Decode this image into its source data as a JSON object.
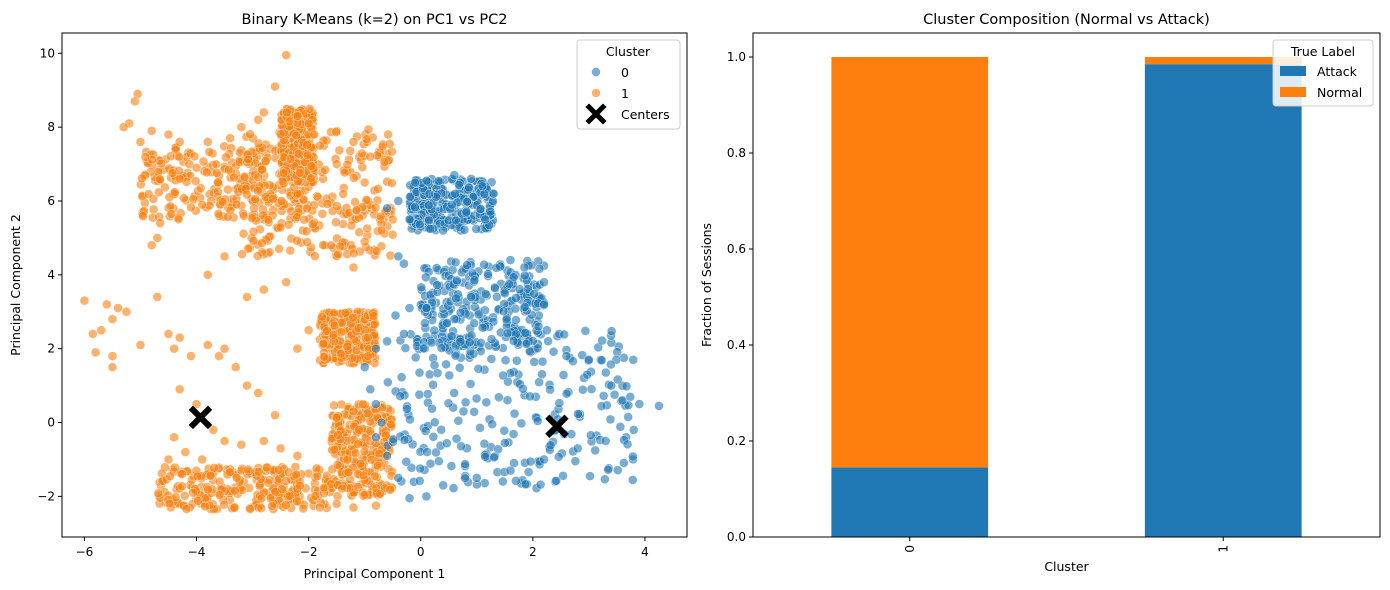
{
  "chart_data": [
    {
      "type": "scatter",
      "title": "Binary K-Means (k=2) on PC1 vs PC2",
      "xlabel": "Principal Component 1",
      "ylabel": "Principal Component 2",
      "xlim": [
        -6.4,
        4.75
      ],
      "ylim": [
        -3.1,
        10.55
      ],
      "xticks": [
        -6,
        -4,
        -2,
        0,
        2,
        4
      ],
      "yticks": [
        -2,
        0,
        2,
        4,
        6,
        8,
        10
      ],
      "xtick_labels": [
        "−6",
        "−4",
        "−2",
        "0",
        "2",
        "4"
      ],
      "ytick_labels": [
        "−2",
        "0",
        "2",
        "4",
        "6",
        "8",
        "10"
      ],
      "legend": {
        "title": "Cluster",
        "position": "top-right",
        "entries": [
          {
            "label": "0",
            "marker": "circle",
            "color": "#1f77b4"
          },
          {
            "label": "1",
            "marker": "circle",
            "color": "#ff7f0e"
          },
          {
            "label": "Centers",
            "marker": "X",
            "color": "#000000"
          }
        ]
      },
      "centers": [
        {
          "cluster": "1",
          "x": -3.93,
          "y": 0.14
        },
        {
          "cluster": "0",
          "x": 2.43,
          "y": -0.1
        }
      ],
      "series": [
        {
          "name": "0",
          "color": "#1f77b4",
          "regions": [
            {
              "x": [
                -0.6,
                3.8
              ],
              "y": [
                -1.8,
                2.5
              ]
            },
            {
              "x": [
                -0.2,
                1.3
              ],
              "y": [
                5.2,
                6.6
              ]
            },
            {
              "x": [
                0.0,
                2.2
              ],
              "y": [
                2.0,
                4.4
              ]
            }
          ],
          "points": [
            [
              4.25,
              0.45
            ],
            [
              3.9,
              0.5
            ],
            [
              3.7,
              0.15
            ],
            [
              3.6,
              0.6
            ],
            [
              3.8,
              -0.2
            ],
            [
              3.4,
              1.0
            ],
            [
              3.0,
              1.7
            ],
            [
              2.6,
              1.8
            ],
            [
              2.1,
              2.6
            ],
            [
              1.6,
              4.4
            ],
            [
              1.85,
              4.2
            ],
            [
              2.2,
              3.8
            ],
            [
              2.2,
              3.2
            ],
            [
              2.25,
              2.5
            ],
            [
              1.5,
              3.5
            ],
            [
              0.9,
              3.4
            ],
            [
              0.1,
              3.1
            ],
            [
              -0.2,
              3.1
            ],
            [
              -0.45,
              2.9
            ],
            [
              -0.3,
              2.4
            ],
            [
              -0.6,
              2.2
            ],
            [
              -0.8,
              2.0
            ],
            [
              -1.0,
              1.5
            ],
            [
              -0.9,
              0.9
            ],
            [
              -0.8,
              0.5
            ],
            [
              -0.7,
              0.0
            ],
            [
              -0.8,
              -0.4
            ],
            [
              -0.6,
              -0.9
            ],
            [
              -0.4,
              -1.5
            ],
            [
              -0.2,
              -2.05
            ],
            [
              0.1,
              -2.0
            ],
            [
              0.4,
              -1.7
            ],
            [
              1.0,
              -1.5
            ],
            [
              1.6,
              -1.3
            ],
            [
              2.2,
              -1.0
            ],
            [
              2.8,
              -0.7
            ],
            [
              3.3,
              -0.5
            ],
            [
              -0.4,
              4.5
            ],
            [
              -0.3,
              4.3
            ],
            [
              0.4,
              5.2
            ],
            [
              1.15,
              5.5
            ],
            [
              1.3,
              6.2
            ],
            [
              1.1,
              6.4
            ],
            [
              0.6,
              6.7
            ],
            [
              -0.1,
              6.5
            ],
            [
              -0.4,
              6.0
            ],
            [
              -0.2,
              5.5
            ],
            [
              -0.6,
              5.8
            ]
          ]
        },
        {
          "name": "1",
          "color": "#ff7f0e",
          "regions": [
            {
              "x": [
                -4.7,
                -1.6
              ],
              "y": [
                -2.35,
                -1.2
              ]
            },
            {
              "x": [
                -5.0,
                -2.0
              ],
              "y": [
                5.5,
                7.5
              ]
            },
            {
              "x": [
                -3.2,
                -0.5
              ],
              "y": [
                4.5,
                8.0
              ]
            },
            {
              "x": [
                -1.6,
                -0.5
              ],
              "y": [
                -2.0,
                0.5
              ]
            },
            {
              "x": [
                -1.8,
                -0.8
              ],
              "y": [
                1.6,
                3.0
              ]
            },
            {
              "x": [
                -2.5,
                -1.9
              ],
              "y": [
                6.5,
                8.5
              ]
            }
          ],
          "points": [
            [
              -2.4,
              9.95
            ],
            [
              -2.6,
              9.1
            ],
            [
              -5.05,
              8.9
            ],
            [
              -5.1,
              8.7
            ],
            [
              -5.2,
              8.1
            ],
            [
              -5.3,
              8.0
            ],
            [
              -5.0,
              7.6
            ],
            [
              -4.8,
              7.9
            ],
            [
              -4.5,
              7.8
            ],
            [
              -4.3,
              7.6
            ],
            [
              -3.8,
              7.6
            ],
            [
              -3.4,
              7.7
            ],
            [
              -3.2,
              8.0
            ],
            [
              -2.8,
              8.4
            ],
            [
              -2.2,
              8.3
            ],
            [
              -2.0,
              8.1
            ],
            [
              -1.8,
              7.5
            ],
            [
              -1.5,
              7.0
            ],
            [
              -1.2,
              7.6
            ],
            [
              -0.9,
              7.2
            ],
            [
              -1.0,
              6.5
            ],
            [
              -4.65,
              5.4
            ],
            [
              -4.7,
              5.0
            ],
            [
              -4.8,
              4.8
            ],
            [
              -3.8,
              4.0
            ],
            [
              -3.5,
              4.5
            ],
            [
              -3.1,
              3.4
            ],
            [
              -2.8,
              3.6
            ],
            [
              -2.4,
              3.8
            ],
            [
              -1.6,
              4.8
            ],
            [
              -1.2,
              4.2
            ],
            [
              -6.0,
              3.3
            ],
            [
              -5.85,
              2.4
            ],
            [
              -5.7,
              2.5
            ],
            [
              -5.5,
              2.8
            ],
            [
              -5.6,
              3.2
            ],
            [
              -5.4,
              3.1
            ],
            [
              -5.25,
              3.0
            ],
            [
              -5.8,
              1.9
            ],
            [
              -5.5,
              1.8
            ],
            [
              -5.5,
              1.5
            ],
            [
              -5.0,
              2.1
            ],
            [
              -4.7,
              3.4
            ],
            [
              -4.5,
              2.4
            ],
            [
              -4.4,
              2.0
            ],
            [
              -4.3,
              2.3
            ],
            [
              -4.1,
              1.8
            ],
            [
              -4.3,
              0.9
            ],
            [
              -4.0,
              0.5
            ],
            [
              -3.8,
              2.1
            ],
            [
              -3.6,
              1.8
            ],
            [
              -3.5,
              2.0
            ],
            [
              -3.3,
              1.5
            ],
            [
              -3.1,
              1.0
            ],
            [
              -2.9,
              0.8
            ],
            [
              -2.6,
              0.2
            ],
            [
              -2.2,
              2.0
            ],
            [
              -2.0,
              2.5
            ],
            [
              -3.7,
              -0.2
            ],
            [
              -3.5,
              -0.5
            ],
            [
              -3.2,
              -0.6
            ],
            [
              -2.8,
              -0.5
            ],
            [
              -2.5,
              -0.7
            ],
            [
              -2.2,
              -0.9
            ],
            [
              -4.4,
              -0.4
            ],
            [
              -4.2,
              -0.8
            ],
            [
              -4.5,
              -1.0
            ],
            [
              -3.9,
              -1.0
            ],
            [
              -1.2,
              0.3
            ],
            [
              -1.1,
              -0.2
            ],
            [
              -0.95,
              0.25
            ],
            [
              -0.9,
              -0.5
            ],
            [
              -1.8,
              -2.3
            ],
            [
              -1.5,
              -2.2
            ],
            [
              -1.2,
              -2.3
            ],
            [
              -0.8,
              -2.25
            ],
            [
              -0.5,
              5.5
            ],
            [
              -0.7,
              5.2
            ],
            [
              -1.0,
              4.9
            ],
            [
              -1.9,
              7.8
            ],
            [
              -2.9,
              8.2
            ],
            [
              -4.0,
              6.9
            ],
            [
              -4.3,
              6.6
            ],
            [
              -3.9,
              5.9
            ]
          ]
        }
      ]
    },
    {
      "type": "bar",
      "stacked": true,
      "title": "Cluster Composition (Normal vs Attack)",
      "xlabel": "Cluster",
      "ylabel": "Fraction of Sessions",
      "categories": [
        "0",
        "1"
      ],
      "ylim": [
        0,
        1.05
      ],
      "yticks": [
        0.0,
        0.2,
        0.4,
        0.6,
        0.8,
        1.0
      ],
      "ytick_labels": [
        "0.0",
        "0.2",
        "0.4",
        "0.6",
        "0.8",
        "1.0"
      ],
      "legend": {
        "title": "True Label",
        "position": "top-right"
      },
      "series": [
        {
          "name": "Attack",
          "color": "#1f77b4",
          "values": [
            0.145,
            0.985
          ]
        },
        {
          "name": "Normal",
          "color": "#ff7f0e",
          "values": [
            0.855,
            0.015
          ]
        }
      ]
    }
  ]
}
